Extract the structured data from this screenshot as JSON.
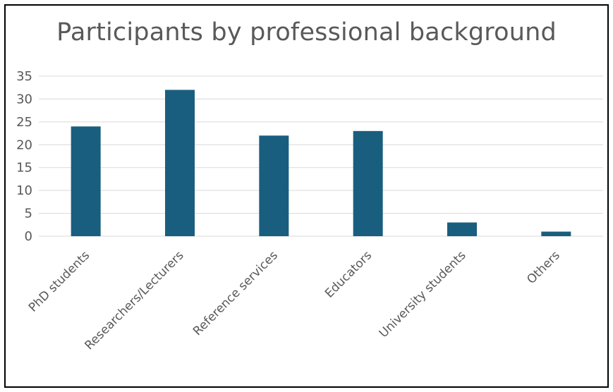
{
  "chart_data": {
    "type": "bar",
    "title": "Participants by professional background",
    "categories": [
      "PhD students",
      "Researchers/Lecturers",
      "Reference services",
      "Educators",
      "University students",
      "Others"
    ],
    "values": [
      24,
      32,
      22,
      23,
      3,
      1
    ],
    "ylim": [
      0,
      35
    ],
    "yticks": [
      0,
      5,
      10,
      15,
      20,
      25,
      30,
      35
    ],
    "xlabel": "",
    "ylabel": "",
    "grid": true,
    "legend": "none",
    "bar_color": "#1a5e7f",
    "gridline_color": "#d9d9d9",
    "text_color": "#595959"
  }
}
